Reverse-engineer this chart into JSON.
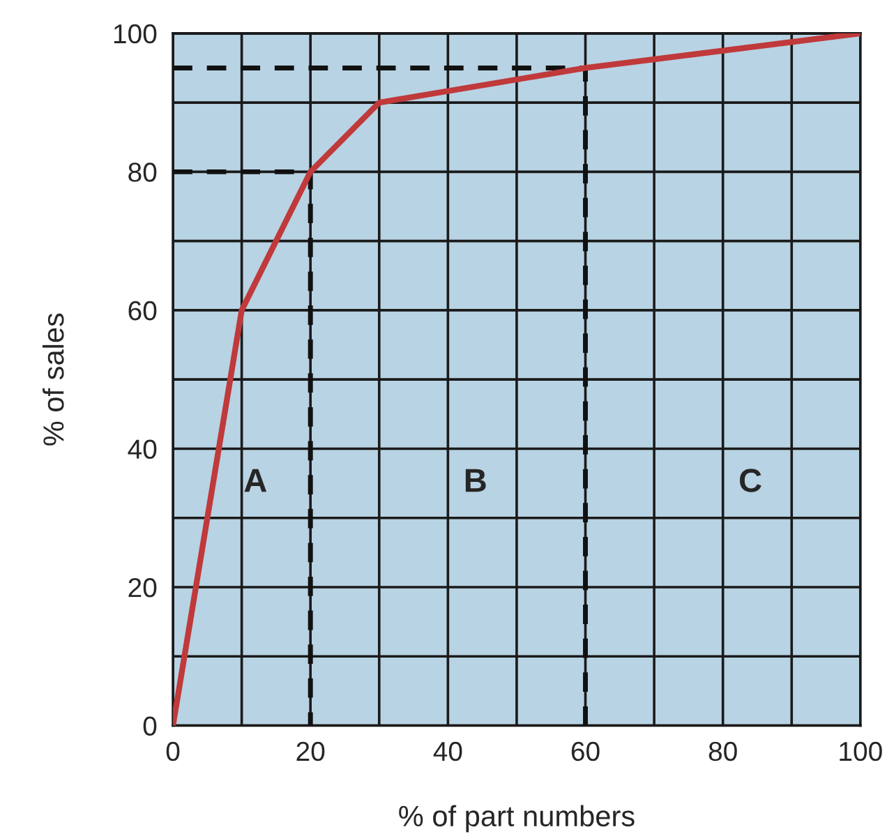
{
  "chart_data": {
    "type": "line",
    "xlabel": "% of part numbers",
    "ylabel": "% of sales",
    "x": [
      0,
      10,
      20,
      30,
      60,
      100
    ],
    "series": [
      {
        "color": "#c0393b",
        "values": [
          0,
          60,
          80,
          90,
          95,
          100
        ],
        "line_style": "solid"
      },
      {
        "color": "#111111",
        "x": [
          0,
          20,
          20
        ],
        "values": [
          80,
          80,
          0
        ],
        "line_style": "dashed"
      },
      {
        "color": "#111111",
        "x": [
          0,
          60,
          60
        ],
        "values": [
          95,
          95,
          0
        ],
        "line_style": "dashed"
      }
    ],
    "annotations": [
      "A",
      "B",
      "C"
    ],
    "xlim": [
      0,
      100
    ],
    "ylim": [
      0,
      100
    ],
    "xticks": [
      0,
      {
        "value": 10,
        "label": null
      },
      20,
      {
        "value": 30,
        "label": null
      },
      40,
      {
        "value": 50,
        "label": null
      },
      60,
      {
        "value": 70,
        "label": null
      },
      80,
      {
        "value": 90,
        "label": null
      },
      100
    ],
    "yticks": [
      0,
      {
        "value": 10,
        "label": null
      },
      20,
      {
        "value": 30,
        "label": null
      },
      40,
      {
        "value": 50,
        "label": null
      },
      60,
      {
        "value": 70,
        "label": null
      },
      80,
      {
        "value": 90,
        "label": null
      },
      100
    ],
    "grid": true,
    "legend": false
  }
}
